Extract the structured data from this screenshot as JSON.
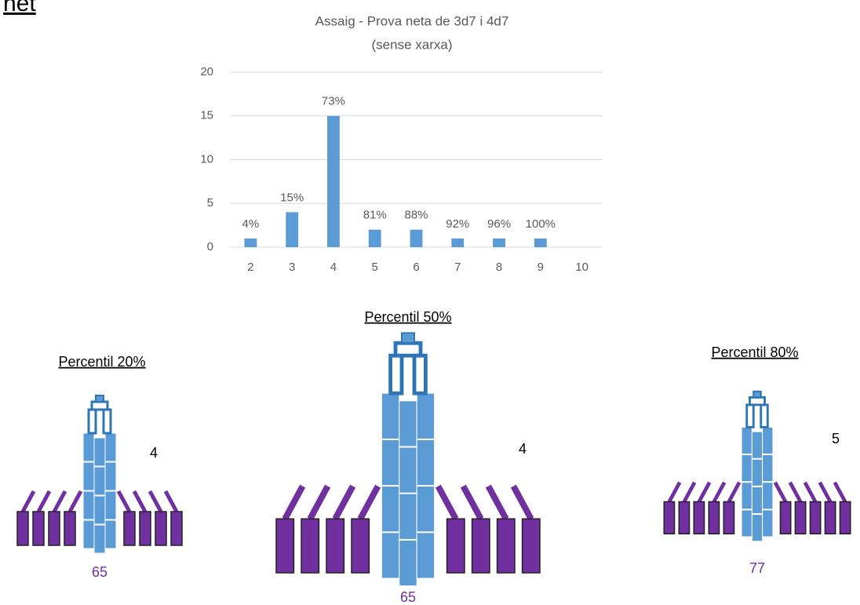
{
  "header": {
    "title": "net"
  },
  "chart_data": {
    "type": "bar",
    "title": "Assaig - Prova neta de 3d7 i 4d7",
    "subtitle": "(sense xarxa)",
    "categories": [
      "2",
      "3",
      "4",
      "5",
      "6",
      "7",
      "8",
      "9",
      "10"
    ],
    "values": [
      1,
      4,
      15,
      2,
      2,
      1,
      1,
      1,
      0
    ],
    "annotations": [
      "4%",
      "15%",
      "73%",
      "81%",
      "88%",
      "92%",
      "96%",
      "100%"
    ],
    "color": "#5b9bd5",
    "ylim": [
      0,
      20
    ],
    "yticks": [
      0,
      5,
      10,
      15,
      20
    ],
    "grid": true
  },
  "figures": [
    {
      "title": "Percentil 20%",
      "side_label": "4",
      "bottom_label": "65"
    },
    {
      "title": "Percentil 50%",
      "side_label": "4",
      "bottom_label": "65"
    },
    {
      "title": "Percentil 80%",
      "side_label": "5",
      "bottom_label": "77"
    }
  ]
}
